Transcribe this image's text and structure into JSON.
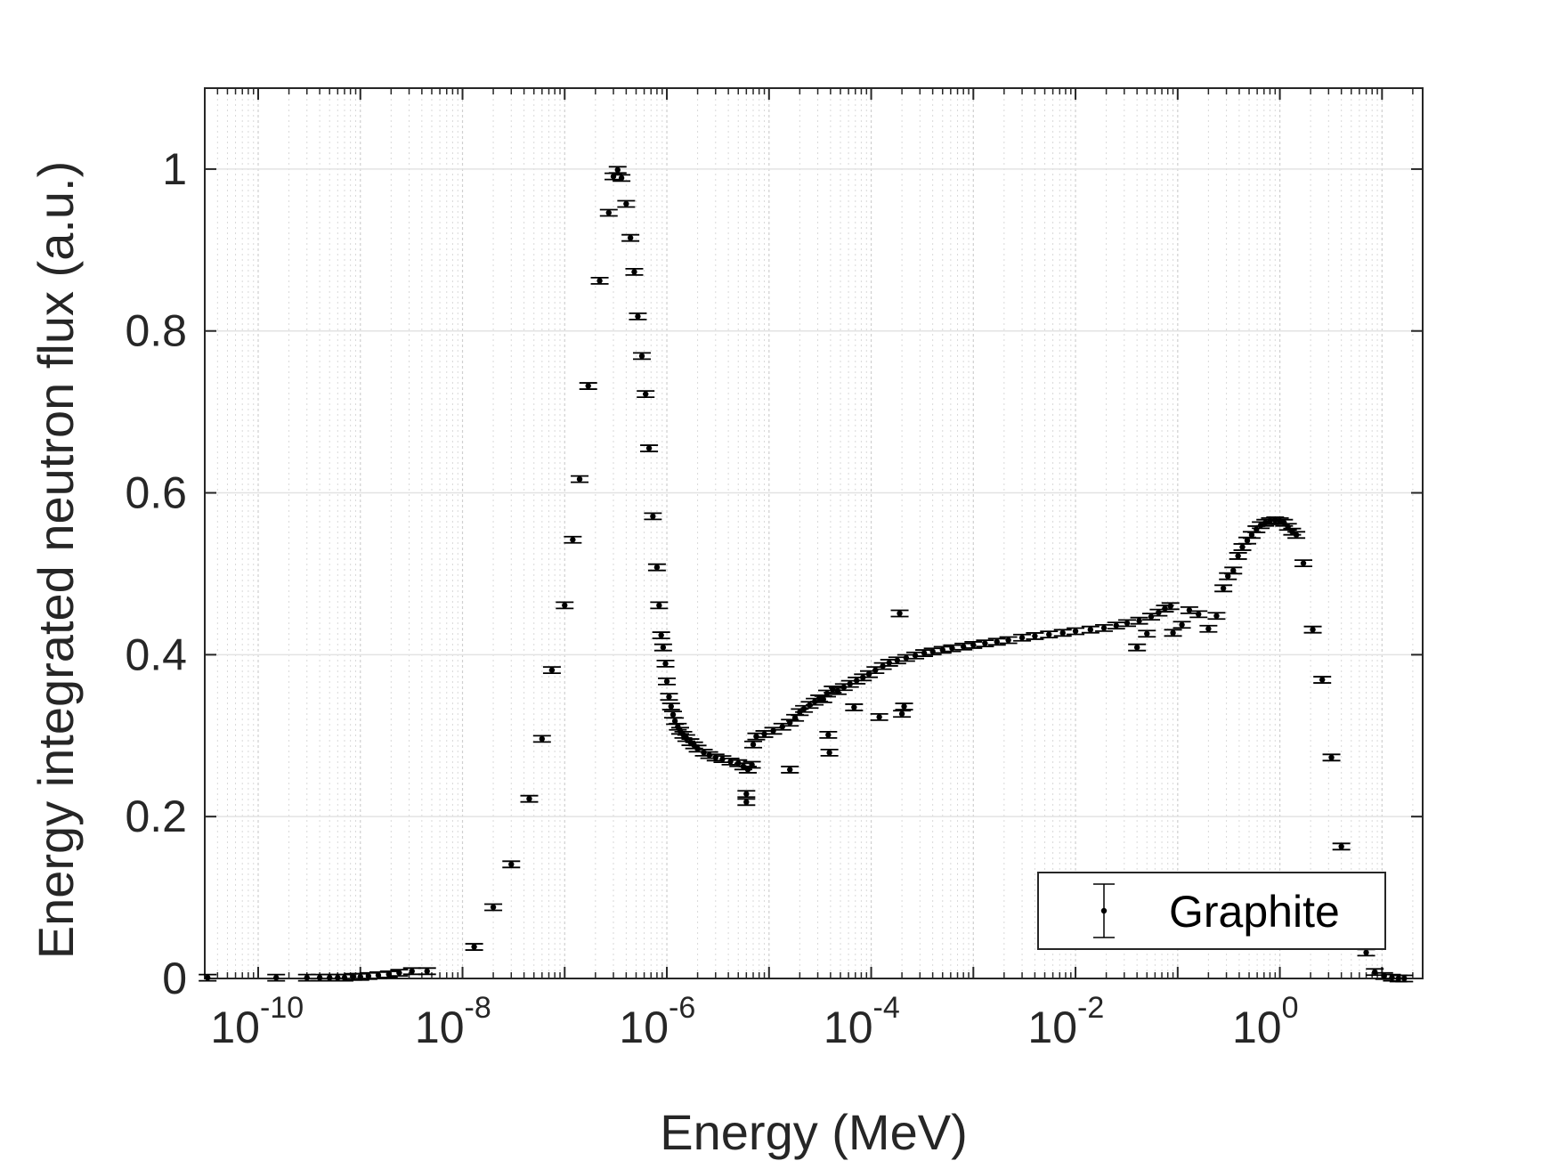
{
  "chart_data": {
    "type": "scatter",
    "title": "",
    "xlabel": "Energy (MeV)",
    "ylabel": "Energy integrated neutron flux (a.u.)",
    "xscale": "log",
    "xlim": [
      3e-11,
      25
    ],
    "ylim": [
      0,
      1.1
    ],
    "grid": true,
    "minor_grid_x": true,
    "x_ticks": [
      {
        "base": "10",
        "exp": "-10"
      },
      {
        "base": "10",
        "exp": "-8"
      },
      {
        "base": "10",
        "exp": "-6"
      },
      {
        "base": "10",
        "exp": "-4"
      },
      {
        "base": "10",
        "exp": "-2"
      },
      {
        "base": "10",
        "exp": "0"
      }
    ],
    "y_ticks": [
      "0",
      "0.2",
      "0.4",
      "0.6",
      "0.8",
      "1"
    ],
    "legend_position": "bottom-right",
    "colors": {
      "series": "#000000",
      "grid": "#d9d9d9",
      "axis": "#262626"
    },
    "series": [
      {
        "name": "Graphite",
        "marker": "dot-with-errorbars",
        "points": [
          [
            3.2e-11,
            0.001
          ],
          [
            1.5e-10,
            0.001
          ],
          [
            3e-10,
            0.001
          ],
          [
            4e-10,
            0.001
          ],
          [
            5e-10,
            0.001
          ],
          [
            6e-10,
            0.001
          ],
          [
            7e-10,
            0.001
          ],
          [
            8.5e-10,
            0.002
          ],
          [
            1e-09,
            0.002
          ],
          [
            1.2e-09,
            0.003
          ],
          [
            1.5e-09,
            0.004
          ],
          [
            1.9e-09,
            0.005
          ],
          [
            2.4e-09,
            0.007
          ],
          [
            3.2e-09,
            0.009
          ],
          [
            4.5e-09,
            0.009
          ],
          [
            1.3e-08,
            0.039
          ],
          [
            2e-08,
            0.088
          ],
          [
            3e-08,
            0.141
          ],
          [
            4.5e-08,
            0.222
          ],
          [
            6e-08,
            0.296
          ],
          [
            7.5e-08,
            0.381
          ],
          [
            1e-07,
            0.461
          ],
          [
            1.2e-07,
            0.542
          ],
          [
            1.4e-07,
            0.617
          ],
          [
            1.7e-07,
            0.732
          ],
          [
            2.2e-07,
            0.862
          ],
          [
            2.7e-07,
            0.946
          ],
          [
            3e-07,
            0.991
          ],
          [
            3.3e-07,
            0.999
          ],
          [
            3.6e-07,
            0.989
          ],
          [
            4e-07,
            0.957
          ],
          [
            4.4e-07,
            0.915
          ],
          [
            4.8e-07,
            0.873
          ],
          [
            5.2e-07,
            0.818
          ],
          [
            5.7e-07,
            0.769
          ],
          [
            6.2e-07,
            0.722
          ],
          [
            6.7e-07,
            0.655
          ],
          [
            7.3e-07,
            0.571
          ],
          [
            8e-07,
            0.508
          ],
          [
            8.4e-07,
            0.461
          ],
          [
            8.8e-07,
            0.424
          ],
          [
            9.2e-07,
            0.409
          ],
          [
            9.7e-07,
            0.389
          ],
          [
            1e-06,
            0.367
          ],
          [
            1.05e-06,
            0.348
          ],
          [
            1.1e-06,
            0.336
          ],
          [
            1.15e-06,
            0.326
          ],
          [
            1.2e-06,
            0.318
          ],
          [
            1.28e-06,
            0.311
          ],
          [
            1.35e-06,
            0.306
          ],
          [
            1.45e-06,
            0.301
          ],
          [
            1.55e-06,
            0.297
          ],
          [
            1.7e-06,
            0.292
          ],
          [
            1.85e-06,
            0.288
          ],
          [
            2e-06,
            0.284
          ],
          [
            2.3e-06,
            0.279
          ],
          [
            2.6e-06,
            0.276
          ],
          [
            3e-06,
            0.273
          ],
          [
            3.5e-06,
            0.271
          ],
          [
            4.2e-06,
            0.268
          ],
          [
            5e-06,
            0.266
          ],
          [
            5.6e-06,
            0.262
          ],
          [
            6.2e-06,
            0.258
          ],
          [
            6.8e-06,
            0.264
          ],
          [
            6e-06,
            0.228
          ],
          [
            6e-06,
            0.218
          ],
          [
            7e-06,
            0.289
          ],
          [
            7.5e-06,
            0.299
          ],
          [
            9e-06,
            0.302
          ],
          [
            1.1e-05,
            0.306
          ],
          [
            1.35e-05,
            0.311
          ],
          [
            1.6e-05,
            0.316
          ],
          [
            1.8e-05,
            0.322
          ],
          [
            2e-05,
            0.329
          ],
          [
            1.6e-05,
            0.258
          ],
          [
            2.2e-05,
            0.333
          ],
          [
            2.5e-05,
            0.338
          ],
          [
            2.8e-05,
            0.342
          ],
          [
            3.1e-05,
            0.346
          ],
          [
            3.4e-05,
            0.345
          ],
          [
            3.7e-05,
            0.352
          ],
          [
            3.8e-05,
            0.301
          ],
          [
            3.9e-05,
            0.279
          ],
          [
            4.2e-05,
            0.357
          ],
          [
            4.7e-05,
            0.355
          ],
          [
            5.4e-05,
            0.36
          ],
          [
            6.2e-05,
            0.364
          ],
          [
            6.8e-05,
            0.335
          ],
          [
            7.2e-05,
            0.368
          ],
          [
            8.3e-05,
            0.372
          ],
          [
            9.5e-05,
            0.376
          ],
          [
            0.00011,
            0.381
          ],
          [
            0.00012,
            0.323
          ],
          [
            0.00013,
            0.386
          ],
          [
            0.00015,
            0.39
          ],
          [
            0.00018,
            0.393
          ],
          [
            0.00019,
            0.451
          ],
          [
            0.0002,
            0.327
          ],
          [
            0.00021,
            0.336
          ],
          [
            0.00022,
            0.396
          ],
          [
            0.00027,
            0.399
          ],
          [
            0.00033,
            0.402
          ],
          [
            0.0004,
            0.404
          ],
          [
            0.0005,
            0.406
          ],
          [
            0.00062,
            0.408
          ],
          [
            0.0008,
            0.41
          ],
          [
            0.001,
            0.412
          ],
          [
            0.0013,
            0.414
          ],
          [
            0.0017,
            0.416
          ],
          [
            0.0022,
            0.418
          ],
          [
            0.003,
            0.421
          ],
          [
            0.004,
            0.423
          ],
          [
            0.0055,
            0.425
          ],
          [
            0.0075,
            0.427
          ],
          [
            0.01,
            0.429
          ],
          [
            0.014,
            0.431
          ],
          [
            0.019,
            0.433
          ],
          [
            0.025,
            0.436
          ],
          [
            0.032,
            0.439
          ],
          [
            0.04,
            0.409
          ],
          [
            0.042,
            0.442
          ],
          [
            0.05,
            0.426
          ],
          [
            0.055,
            0.447
          ],
          [
            0.065,
            0.452
          ],
          [
            0.075,
            0.457
          ],
          [
            0.085,
            0.46
          ],
          [
            0.09,
            0.427
          ],
          [
            0.11,
            0.437
          ],
          [
            0.13,
            0.455
          ],
          [
            0.16,
            0.45
          ],
          [
            0.2,
            0.432
          ],
          [
            0.24,
            0.448
          ],
          [
            0.28,
            0.482
          ],
          [
            0.31,
            0.497
          ],
          [
            0.35,
            0.504
          ],
          [
            0.39,
            0.522
          ],
          [
            0.43,
            0.533
          ],
          [
            0.48,
            0.541
          ],
          [
            0.53,
            0.548
          ],
          [
            0.59,
            0.555
          ],
          [
            0.65,
            0.56
          ],
          [
            0.72,
            0.563
          ],
          [
            0.8,
            0.565
          ],
          [
            0.9,
            0.566
          ],
          [
            1.0,
            0.565
          ],
          [
            1.1,
            0.563
          ],
          [
            1.2,
            0.558
          ],
          [
            1.32,
            0.552
          ],
          [
            1.45,
            0.548
          ],
          [
            1.7,
            0.513
          ],
          [
            2.1,
            0.431
          ],
          [
            2.6,
            0.369
          ],
          [
            3.2,
            0.273
          ],
          [
            4.0,
            0.163
          ],
          [
            7.0,
            0.032
          ],
          [
            8.5,
            0.008
          ],
          [
            10.5,
            0.003
          ],
          [
            12.5,
            0.001
          ],
          [
            14.5,
            0.0
          ],
          [
            16.5,
            0.0
          ]
        ]
      }
    ]
  }
}
